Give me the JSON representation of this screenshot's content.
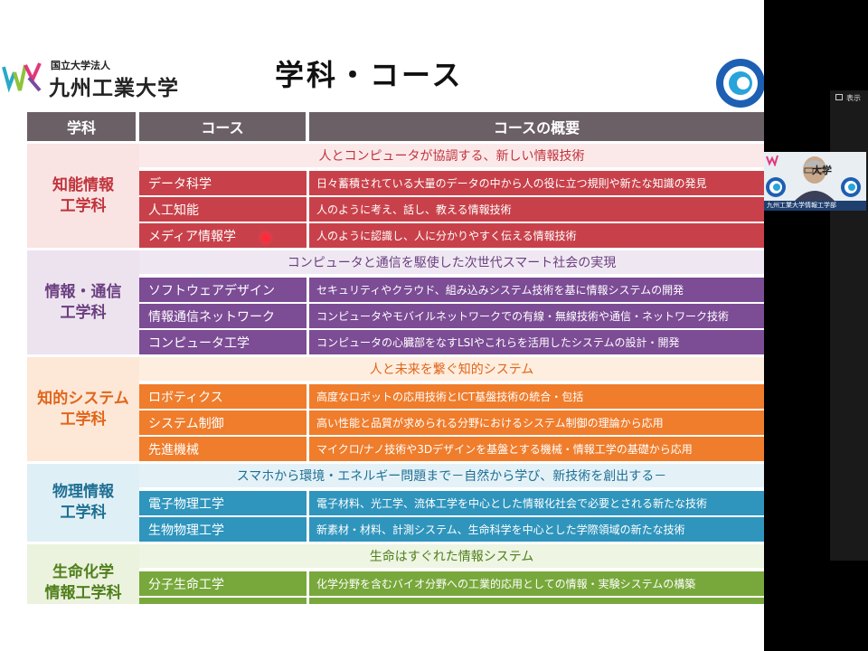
{
  "slide": {
    "logo_subtitle": "国立大学法人",
    "logo_name": "九州工業大学",
    "title": "学科・コース"
  },
  "table": {
    "headers": [
      "学科",
      "コース",
      "コースの概要"
    ],
    "departments": [
      {
        "name": "知能情報\n工学科",
        "tagline": "人とコンピュータが協調する、新しい情報技術",
        "courses": [
          {
            "name": "データ科学",
            "desc": "日々蓄積されている大量のデータの中から人の役に立つ規則や新たな知識の発見"
          },
          {
            "name": "人工知能",
            "desc": "人のように考え、話し、教える情報技術"
          },
          {
            "name": "メディア情報学",
            "desc": "人のように認識し、人に分かりやすく伝える情報技術"
          }
        ]
      },
      {
        "name": "情報・通信\n工学科",
        "tagline": "コンピュータと通信を駆使した次世代スマート社会の実現",
        "courses": [
          {
            "name": "ソフトウェアデザイン",
            "desc": "セキュリティやクラウド、組み込みシステム技術を基に情報システムの開発"
          },
          {
            "name": "情報通信ネットワーク",
            "desc": "コンピュータやモバイルネットワークでの有線・無線技術や通信・ネットワーク技術"
          },
          {
            "name": "コンピュータ工学",
            "desc": "コンピュータの心臓部をなすLSIやこれらを活用したシステムの設計・開発"
          }
        ]
      },
      {
        "name": "知的システム\n工学科",
        "tagline": "人と未来を繋ぐ知的システム",
        "courses": [
          {
            "name": "ロボティクス",
            "desc": "高度なロボットの応用技術とICT基盤技術の統合・包括"
          },
          {
            "name": "システム制御",
            "desc": "高い性能と品質が求められる分野におけるシステム制御の理論から応用"
          },
          {
            "name": "先進機械",
            "desc": "マイクロ/ナノ技術や3Dデザインを基盤とする機械・情報工学の基礎から応用"
          }
        ]
      },
      {
        "name": "物理情報\n工学科",
        "tagline": "スマホから環境・エネルギー問題まで－自然から学び、新技術を創出する－",
        "courses": [
          {
            "name": "電子物理工学",
            "desc": "電子材料、光工学、流体工学を中心とした情報化社会で必要とされる新たな技術"
          },
          {
            "name": "生物物理工学",
            "desc": "新素材・材料、計測システム、生命科学を中心とした学際領域の新たな技術"
          }
        ]
      },
      {
        "name": "生命化学\n情報工学科",
        "tagline": "生命はすぐれた情報システム",
        "courses": [
          {
            "name": "分子生命工学",
            "desc": "化学分野を含むバイオ分野への工業的応用としての情報・実験システムの構築"
          }
        ]
      }
    ]
  },
  "meeting": {
    "view_label": "表示",
    "participant_logo_text": "大学",
    "participant_caption": "九州工業大学情報工学部"
  },
  "colors": {
    "header_bg": "#6b6066",
    "dept1": "#c8414a",
    "dept2": "#7c4c95",
    "dept3": "#ef7d2c",
    "dept4": "#2f95bd",
    "dept5": "#78a83b"
  }
}
